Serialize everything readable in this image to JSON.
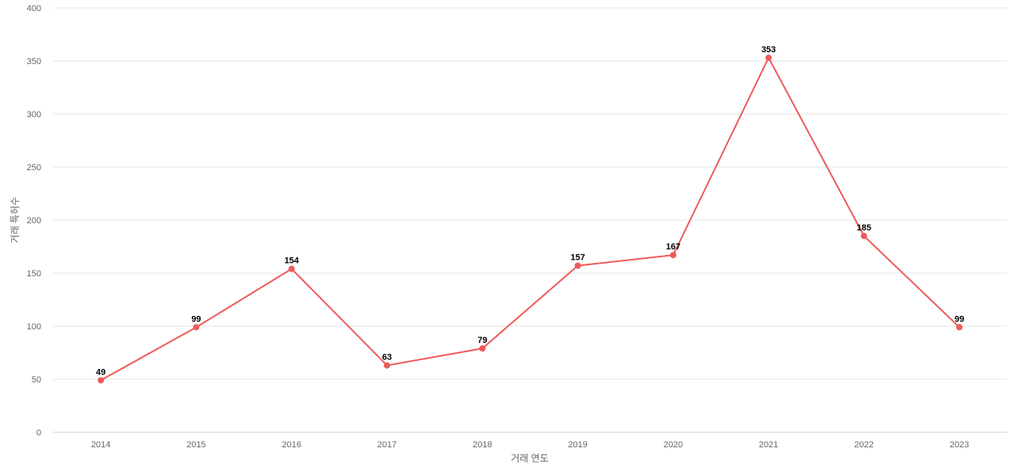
{
  "chart_data": {
    "type": "line",
    "title": "",
    "xlabel": "거래 연도",
    "ylabel": "거래 특허수",
    "ylim": [
      0,
      400
    ],
    "yticks": [
      0,
      50,
      100,
      150,
      200,
      250,
      300,
      350,
      400
    ],
    "categories": [
      "2014",
      "2015",
      "2016",
      "2017",
      "2018",
      "2019",
      "2020",
      "2021",
      "2022",
      "2023"
    ],
    "series": [
      {
        "values": [
          49,
          99,
          154,
          63,
          79,
          157,
          167,
          353,
          185,
          99
        ],
        "color": "#ef5a5a"
      }
    ],
    "grid": true,
    "legend": "none"
  }
}
